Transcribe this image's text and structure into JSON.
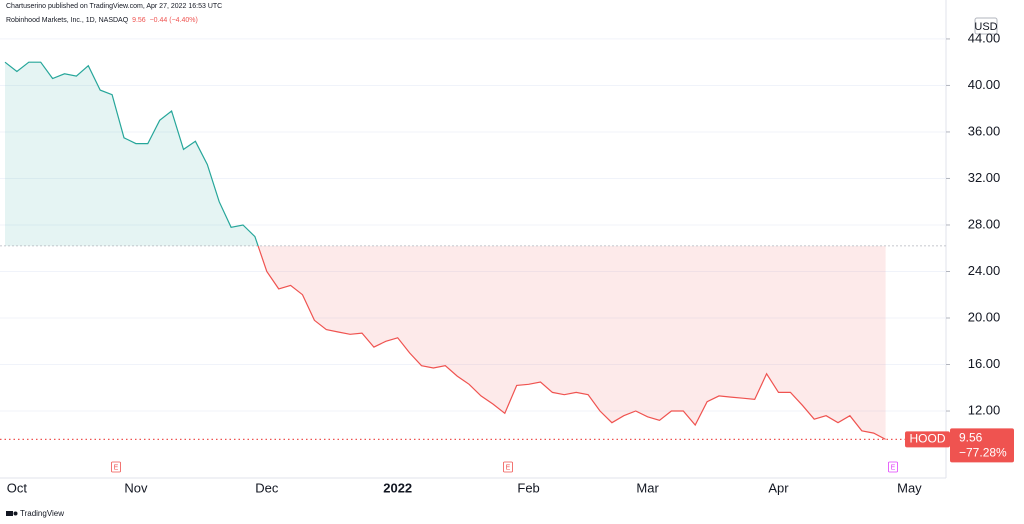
{
  "header": {
    "publisher": "Chartuserino published on TradingView.com, Apr 27, 2022 16:53 UTC",
    "brand": "TradingView"
  },
  "chart_data": {
    "type": "baseline",
    "title": "Robinhood Markets, Inc., 1D, NASDAQ",
    "last": 9.56,
    "change_label": "−0.44 (−4.40%)",
    "y_unit": "USD",
    "categories": [
      null,
      "Oct",
      null,
      null,
      null,
      null,
      null,
      null,
      null,
      null,
      null,
      "Nov",
      null,
      null,
      null,
      null,
      null,
      null,
      null,
      null,
      null,
      null,
      "Dec",
      null,
      null,
      null,
      null,
      null,
      null,
      null,
      null,
      null,
      null,
      "2022",
      null,
      null,
      null,
      null,
      null,
      null,
      null,
      null,
      null,
      null,
      "Feb",
      null,
      null,
      null,
      null,
      null,
      null,
      null,
      null,
      null,
      "Mar",
      null,
      null,
      null,
      null,
      null,
      null,
      null,
      null,
      null,
      null,
      "Apr",
      null,
      null,
      null,
      null,
      null,
      null,
      null,
      null,
      null,
      null,
      "May"
    ],
    "values": [
      42.0,
      41.2,
      42.0,
      42.0,
      40.6,
      41.0,
      40.8,
      41.7,
      39.6,
      39.2,
      35.5,
      35.0,
      35.0,
      37.0,
      37.8,
      34.5,
      35.2,
      33.2,
      30.0,
      27.8,
      28.0,
      27.0,
      24.0,
      22.5,
      22.8,
      22.0,
      19.8,
      19.0,
      18.8,
      18.6,
      18.7,
      17.5,
      18.0,
      18.3,
      17.0,
      15.9,
      15.7,
      15.9,
      15.0,
      14.3,
      13.3,
      12.6,
      11.8,
      14.2,
      14.3,
      14.5,
      13.6,
      13.4,
      13.6,
      13.4,
      12.0,
      11.0,
      11.6,
      12.0,
      11.5,
      11.2,
      12.0,
      12.0,
      10.8,
      12.8,
      13.3,
      13.2,
      13.1,
      13.0,
      15.2,
      13.6,
      13.6,
      12.5,
      11.3,
      11.6,
      11.0,
      11.6,
      10.3,
      10.1,
      9.56,
      null,
      null
    ],
    "baseline": 26.2,
    "colors": {
      "up": "#26a69a",
      "down": "#ef5350"
    },
    "ylim": [
      6.24,
      45.8
    ],
    "yticks": [
      {
        "value": 12,
        "label": "12.00"
      },
      {
        "value": 16,
        "label": "16.00"
      },
      {
        "value": 20,
        "label": "20.00"
      },
      {
        "value": 24,
        "label": "24.00"
      },
      {
        "value": 28,
        "label": "28.00"
      },
      {
        "value": 32,
        "label": "32.00"
      },
      {
        "value": 36,
        "label": "36.00"
      },
      {
        "value": 40,
        "label": "40.00"
      },
      {
        "value": 44,
        "label": "44.00"
      }
    ],
    "grid": true,
    "price_label": {
      "symbol": "HOOD",
      "change_percent": "−77.28%"
    },
    "events": [
      {
        "label": "E"
      },
      {
        "label": "E"
      },
      {
        "label": "E"
      }
    ]
  }
}
